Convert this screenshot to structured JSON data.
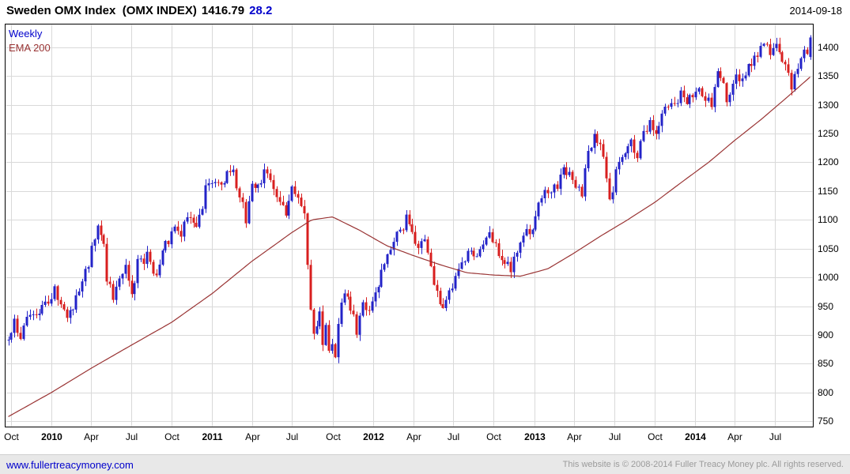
{
  "header": {
    "title": "Sweden OMX Index  (OMX INDEX)",
    "price": "1416.79",
    "change": "28.2",
    "date": "2014-09-18"
  },
  "legend": {
    "timeframe": "Weekly",
    "overlay": "EMA 200"
  },
  "footer": {
    "link": "www.fullertreacymoney.com",
    "copyright": "This website is © 2008-2014 Fuller Treacy Money plc. All rights reserved."
  },
  "chart_data": {
    "type": "candlestick",
    "title": "Sweden OMX Index (OMX INDEX)",
    "timeframe": "weekly",
    "last_close": 1416.79,
    "change": 28.2,
    "as_of": "2014-09-18",
    "grid": true,
    "legend_position": "top-left-inside",
    "y_axis": {
      "side": "right",
      "min": 750,
      "max": 1400,
      "step": 50,
      "render_min": 740,
      "render_max": 1440
    },
    "x_axis": {
      "start": "2009-09-25",
      "end": "2014-09-19",
      "interval": "week",
      "labels": [
        {
          "text": "Oct",
          "date": "2009-10-01",
          "bold": false
        },
        {
          "text": "2010",
          "date": "2010-01-01",
          "bold": true
        },
        {
          "text": "Apr",
          "date": "2010-04-01",
          "bold": false
        },
        {
          "text": "Jul",
          "date": "2010-07-01",
          "bold": false
        },
        {
          "text": "Oct",
          "date": "2010-10-01",
          "bold": false
        },
        {
          "text": "2011",
          "date": "2011-01-01",
          "bold": true
        },
        {
          "text": "Apr",
          "date": "2011-04-01",
          "bold": false
        },
        {
          "text": "Jul",
          "date": "2011-07-01",
          "bold": false
        },
        {
          "text": "Oct",
          "date": "2011-10-01",
          "bold": false
        },
        {
          "text": "2012",
          "date": "2012-01-01",
          "bold": true
        },
        {
          "text": "Apr",
          "date": "2012-04-01",
          "bold": false
        },
        {
          "text": "Jul",
          "date": "2012-07-01",
          "bold": false
        },
        {
          "text": "Oct",
          "date": "2012-10-01",
          "bold": false
        },
        {
          "text": "2013",
          "date": "2013-01-01",
          "bold": true
        },
        {
          "text": "Apr",
          "date": "2013-04-01",
          "bold": false
        },
        {
          "text": "Jul",
          "date": "2013-07-01",
          "bold": false
        },
        {
          "text": "Oct",
          "date": "2013-10-01",
          "bold": false
        },
        {
          "text": "2014",
          "date": "2014-01-01",
          "bold": true
        },
        {
          "text": "Apr",
          "date": "2014-04-01",
          "bold": false
        },
        {
          "text": "Jul",
          "date": "2014-07-01",
          "bold": false
        }
      ]
    },
    "colors": {
      "up": "#2323c8",
      "down": "#d81f1f",
      "ema": "#993333",
      "grid": "#d9d9d9",
      "border": "#000000",
      "legend_weekly": "#0000cc",
      "change_text": "#0000cc",
      "link": "#0000cc",
      "footer_bg": "#e8e8e8",
      "footer_text": "#9b9b9b"
    },
    "noise_seed": 42,
    "price_anchors": [
      [
        "2009-09-25",
        890
      ],
      [
        "2009-10-02",
        905
      ],
      [
        "2009-10-09",
        922
      ],
      [
        "2009-10-23",
        898
      ],
      [
        "2009-11-06",
        928
      ],
      [
        "2009-11-20",
        945
      ],
      [
        "2009-12-04",
        938
      ],
      [
        "2009-12-18",
        955
      ],
      [
        "2010-01-08",
        978
      ],
      [
        "2010-01-22",
        958
      ],
      [
        "2010-02-05",
        935
      ],
      [
        "2010-02-19",
        952
      ],
      [
        "2010-03-05",
        985
      ],
      [
        "2010-03-26",
        1022
      ],
      [
        "2010-04-16",
        1098
      ],
      [
        "2010-04-30",
        1068
      ],
      [
        "2010-05-07",
        1000
      ],
      [
        "2010-05-21",
        958
      ],
      [
        "2010-06-04",
        992
      ],
      [
        "2010-06-18",
        1012
      ],
      [
        "2010-07-02",
        968
      ],
      [
        "2010-07-16",
        1022
      ],
      [
        "2010-08-06",
        1038
      ],
      [
        "2010-08-27",
        1002
      ],
      [
        "2010-09-10",
        1042
      ],
      [
        "2010-09-24",
        1065
      ],
      [
        "2010-10-08",
        1088
      ],
      [
        "2010-10-22",
        1075
      ],
      [
        "2010-11-05",
        1112
      ],
      [
        "2010-11-26",
        1085
      ],
      [
        "2010-12-17",
        1150
      ],
      [
        "2011-01-07",
        1165
      ],
      [
        "2011-01-21",
        1152
      ],
      [
        "2011-02-04",
        1192
      ],
      [
        "2011-02-18",
        1178
      ],
      [
        "2011-03-04",
        1148
      ],
      [
        "2011-03-18",
        1095
      ],
      [
        "2011-04-01",
        1158
      ],
      [
        "2011-04-15",
        1152
      ],
      [
        "2011-04-29",
        1182
      ],
      [
        "2011-05-13",
        1162
      ],
      [
        "2011-05-27",
        1148
      ],
      [
        "2011-06-17",
        1112
      ],
      [
        "2011-07-01",
        1152
      ],
      [
        "2011-07-08",
        1148
      ],
      [
        "2011-07-22",
        1132
      ],
      [
        "2011-07-29",
        1102
      ],
      [
        "2011-08-05",
        1018
      ],
      [
        "2011-08-12",
        942
      ],
      [
        "2011-08-19",
        898
      ],
      [
        "2011-08-26",
        922
      ],
      [
        "2011-09-02",
        938
      ],
      [
        "2011-09-09",
        892
      ],
      [
        "2011-09-16",
        912
      ],
      [
        "2011-09-23",
        872
      ],
      [
        "2011-09-30",
        892
      ],
      [
        "2011-10-07",
        868
      ],
      [
        "2011-10-14",
        922
      ],
      [
        "2011-10-28",
        978
      ],
      [
        "2011-11-11",
        945
      ],
      [
        "2011-11-25",
        908
      ],
      [
        "2011-12-09",
        955
      ],
      [
        "2011-12-23",
        948
      ],
      [
        "2012-01-06",
        975
      ],
      [
        "2012-01-20",
        1005
      ],
      [
        "2012-02-03",
        1042
      ],
      [
        "2012-02-17",
        1065
      ],
      [
        "2012-03-02",
        1075
      ],
      [
        "2012-03-16",
        1102
      ],
      [
        "2012-03-30",
        1075
      ],
      [
        "2012-04-13",
        1048
      ],
      [
        "2012-04-27",
        1062
      ],
      [
        "2012-05-11",
        1015
      ],
      [
        "2012-05-25",
        968
      ],
      [
        "2012-06-01",
        948
      ],
      [
        "2012-06-15",
        962
      ],
      [
        "2012-06-29",
        985
      ],
      [
        "2012-07-13",
        1012
      ],
      [
        "2012-07-27",
        1025
      ],
      [
        "2012-08-10",
        1048
      ],
      [
        "2012-08-24",
        1040
      ],
      [
        "2012-09-14",
        1078
      ],
      [
        "2012-09-28",
        1062
      ],
      [
        "2012-10-12",
        1045
      ],
      [
        "2012-10-26",
        1028
      ],
      [
        "2012-11-09",
        1015
      ],
      [
        "2012-11-16",
        1028
      ],
      [
        "2012-11-30",
        1052
      ],
      [
        "2012-12-14",
        1075
      ],
      [
        "2012-12-28",
        1092
      ],
      [
        "2013-01-11",
        1122
      ],
      [
        "2013-01-25",
        1142
      ],
      [
        "2013-02-08",
        1155
      ],
      [
        "2013-02-22",
        1162
      ],
      [
        "2013-03-08",
        1192
      ],
      [
        "2013-03-22",
        1175
      ],
      [
        "2013-04-05",
        1158
      ],
      [
        "2013-04-19",
        1150
      ],
      [
        "2013-05-03",
        1212
      ],
      [
        "2013-05-17",
        1248
      ],
      [
        "2013-05-31",
        1225
      ],
      [
        "2013-06-14",
        1175
      ],
      [
        "2013-06-21",
        1138
      ],
      [
        "2013-06-28",
        1155
      ],
      [
        "2013-07-12",
        1202
      ],
      [
        "2013-07-26",
        1215
      ],
      [
        "2013-08-09",
        1235
      ],
      [
        "2013-08-23",
        1215
      ],
      [
        "2013-09-06",
        1252
      ],
      [
        "2013-09-20",
        1272
      ],
      [
        "2013-10-04",
        1255
      ],
      [
        "2013-10-18",
        1288
      ],
      [
        "2013-11-01",
        1302
      ],
      [
        "2013-11-15",
        1305
      ],
      [
        "2013-11-29",
        1318
      ],
      [
        "2013-12-13",
        1292
      ],
      [
        "2013-12-27",
        1322
      ],
      [
        "2014-01-10",
        1332
      ],
      [
        "2014-01-24",
        1308
      ],
      [
        "2014-02-07",
        1302
      ],
      [
        "2014-02-21",
        1352
      ],
      [
        "2014-03-07",
        1345
      ],
      [
        "2014-03-14",
        1312
      ],
      [
        "2014-03-28",
        1338
      ],
      [
        "2014-04-04",
        1360
      ],
      [
        "2014-04-11",
        1332
      ],
      [
        "2014-04-25",
        1355
      ],
      [
        "2014-05-09",
        1368
      ],
      [
        "2014-05-23",
        1388
      ],
      [
        "2014-06-06",
        1405
      ],
      [
        "2014-06-20",
        1395
      ],
      [
        "2014-07-04",
        1400
      ],
      [
        "2014-07-18",
        1378
      ],
      [
        "2014-08-01",
        1352
      ],
      [
        "2014-08-08",
        1335
      ],
      [
        "2014-08-15",
        1355
      ],
      [
        "2014-08-29",
        1380
      ],
      [
        "2014-09-05",
        1392
      ],
      [
        "2014-09-12",
        1383
      ],
      [
        "2014-09-19",
        1416.79
      ]
    ],
    "ema_anchors": [
      [
        "2009-09-25",
        758
      ],
      [
        "2010-01-01",
        800
      ],
      [
        "2010-04-01",
        842
      ],
      [
        "2010-07-01",
        882
      ],
      [
        "2010-10-01",
        922
      ],
      [
        "2011-01-01",
        972
      ],
      [
        "2011-04-01",
        1028
      ],
      [
        "2011-07-01",
        1078
      ],
      [
        "2011-08-15",
        1100
      ],
      [
        "2011-10-01",
        1105
      ],
      [
        "2011-12-01",
        1082
      ],
      [
        "2012-02-01",
        1055
      ],
      [
        "2012-04-01",
        1038
      ],
      [
        "2012-06-01",
        1022
      ],
      [
        "2012-08-01",
        1008
      ],
      [
        "2012-10-01",
        1004
      ],
      [
        "2012-12-01",
        1002
      ],
      [
        "2013-02-01",
        1015
      ],
      [
        "2013-04-01",
        1042
      ],
      [
        "2013-06-01",
        1072
      ],
      [
        "2013-08-01",
        1100
      ],
      [
        "2013-10-01",
        1130
      ],
      [
        "2013-12-01",
        1165
      ],
      [
        "2014-02-01",
        1200
      ],
      [
        "2014-04-01",
        1238
      ],
      [
        "2014-06-01",
        1275
      ],
      [
        "2014-08-01",
        1315
      ],
      [
        "2014-09-19",
        1348
      ]
    ]
  }
}
